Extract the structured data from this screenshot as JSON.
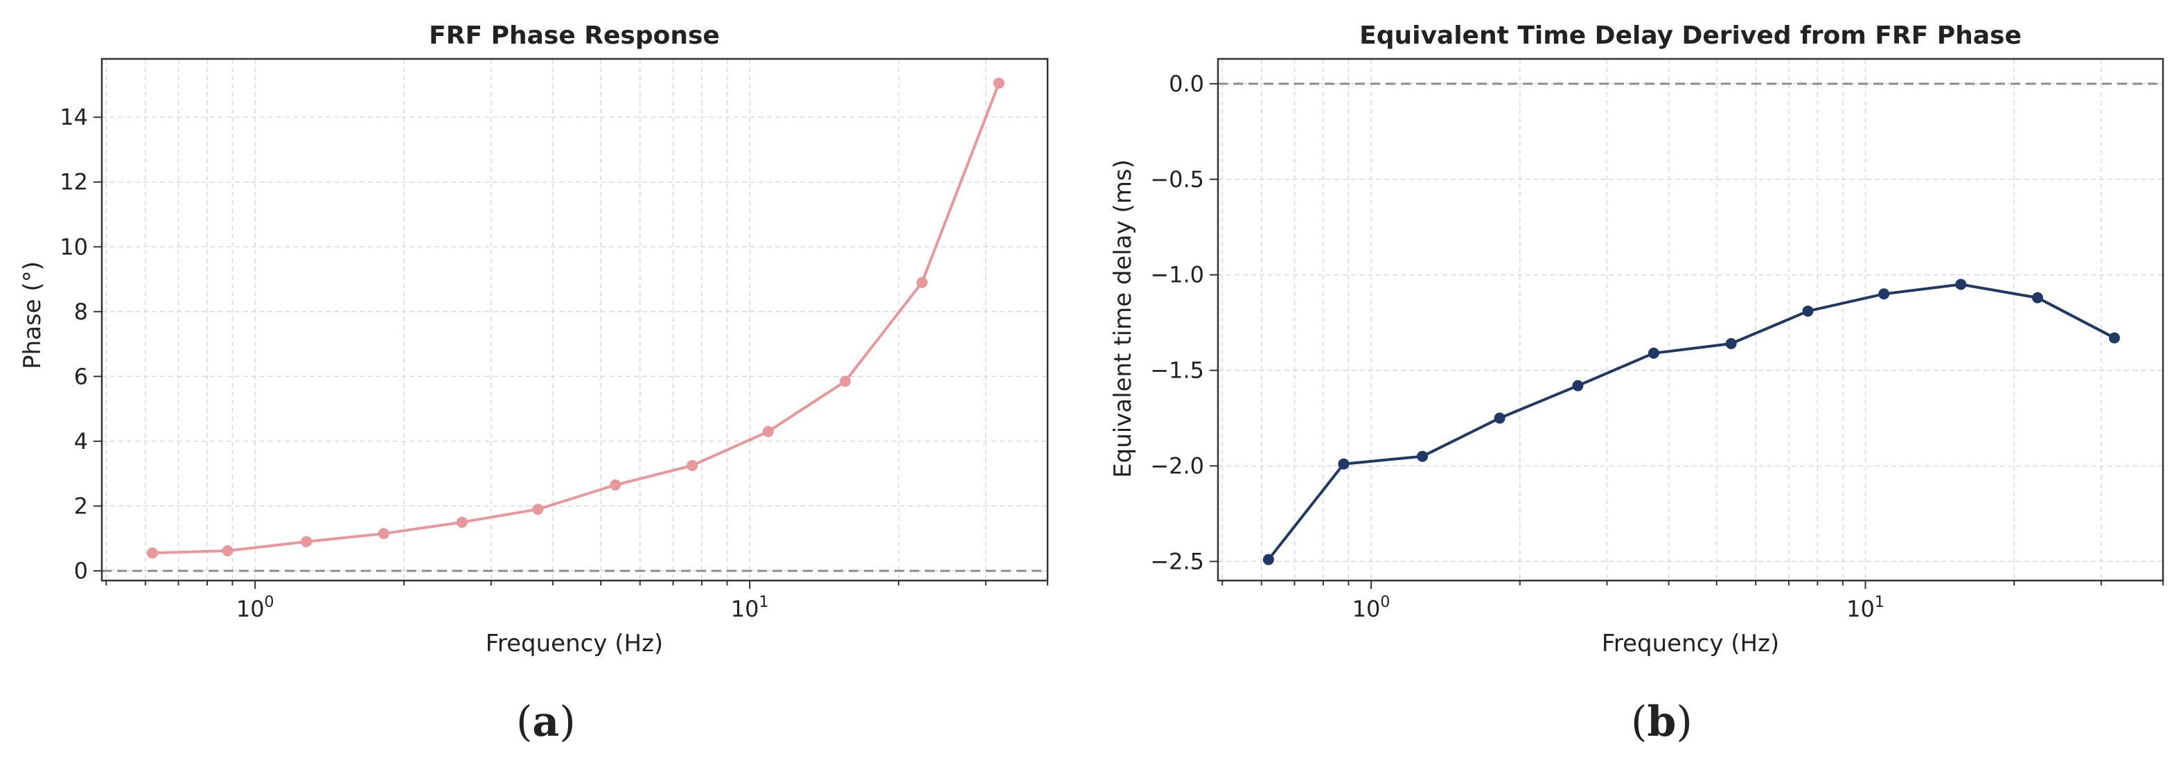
{
  "figure": {
    "panels": [
      "(a)",
      "(b)"
    ]
  },
  "chart_data": [
    {
      "type": "line",
      "title": "FRF Phase Response",
      "xlabel": "Frequency (Hz)",
      "ylabel": "Phase (°)",
      "x_scale": "log",
      "xlim": [
        0.49,
        40
      ],
      "ylim": [
        -0.3,
        15.8
      ],
      "xticks": [
        1,
        10
      ],
      "yticks": [
        0,
        2,
        4,
        6,
        8,
        10,
        12,
        14
      ],
      "grid": true,
      "reference_line": 0,
      "color": "#e8989a",
      "series": [
        {
          "x": [
            0.62,
            0.88,
            1.27,
            1.82,
            2.62,
            3.73,
            5.35,
            7.65,
            10.9,
            15.6,
            22.3,
            31.9
          ],
          "values": [
            0.55,
            0.62,
            0.9,
            1.15,
            1.5,
            1.9,
            2.65,
            3.25,
            4.3,
            5.85,
            8.9,
            15.05
          ]
        }
      ]
    },
    {
      "type": "line",
      "title": "Equivalent Time Delay Derived from FRF Phase",
      "xlabel": "Frequency (Hz)",
      "ylabel": "Equivalent time delay (ms)",
      "x_scale": "log",
      "xlim": [
        0.49,
        40
      ],
      "ylim": [
        -2.6,
        0.13
      ],
      "xticks": [
        1,
        10
      ],
      "yticks": [
        0.0,
        -0.5,
        -1.0,
        -1.5,
        -2.0,
        -2.5
      ],
      "grid": true,
      "reference_line": 0,
      "color": "#1f3864",
      "series": [
        {
          "x": [
            0.62,
            0.88,
            1.27,
            1.82,
            2.62,
            3.73,
            5.35,
            7.65,
            10.9,
            15.6,
            22.3,
            31.9
          ],
          "values": [
            -2.49,
            -1.99,
            -1.95,
            -1.75,
            -1.58,
            -1.41,
            -1.36,
            -1.19,
            -1.1,
            -1.05,
            -1.12,
            -1.33
          ]
        }
      ]
    }
  ]
}
